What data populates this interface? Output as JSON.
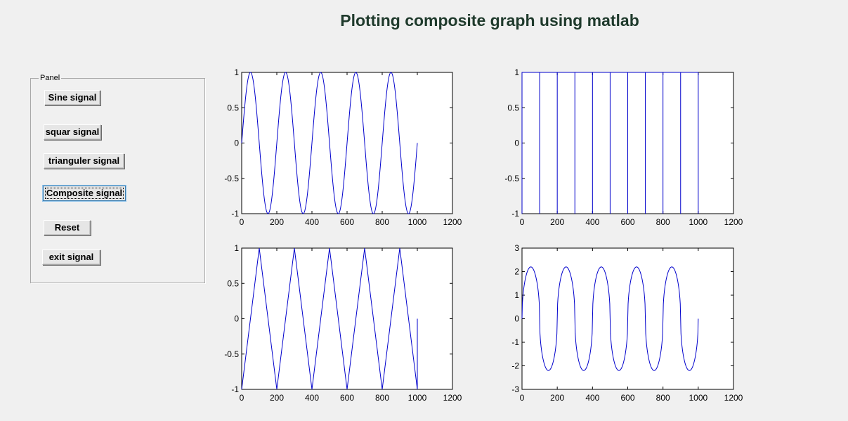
{
  "header": {
    "title": "Plotting composite graph using matlab"
  },
  "panel": {
    "label": "Panel",
    "buttons": [
      {
        "id": "sine",
        "label": "Sine signal"
      },
      {
        "id": "square",
        "label": "squar signal"
      },
      {
        "id": "triangle",
        "label": "trianguler signal"
      },
      {
        "id": "composite",
        "label": "Composite signal",
        "focused": true
      },
      {
        "id": "reset",
        "label": "Reset"
      },
      {
        "id": "exit",
        "label": "exit signal"
      }
    ]
  },
  "colors": {
    "line": "#0000cc",
    "background": "#f0f0f0",
    "title": "#1f3a2c"
  },
  "chart_data": [
    {
      "type": "line",
      "position": "top-left",
      "xlim": [
        0,
        1200
      ],
      "ylim": [
        -1,
        1
      ],
      "xticks": [
        "0",
        "200",
        "400",
        "600",
        "800",
        "1000",
        "1200"
      ],
      "yticks": [
        "-1",
        "-0.5",
        "0",
        "0.5",
        "1"
      ],
      "series": [
        {
          "kind": "sine",
          "period": 200,
          "amplitude": 1,
          "x_range": [
            0,
            1000
          ]
        }
      ]
    },
    {
      "type": "line",
      "position": "top-right",
      "xlim": [
        0,
        1200
      ],
      "ylim": [
        -1,
        1
      ],
      "xticks": [
        "0",
        "200",
        "400",
        "600",
        "800",
        "1000",
        "1200"
      ],
      "yticks": [
        "-1",
        "-0.5",
        "0",
        "0.5",
        "1"
      ],
      "series": [
        {
          "kind": "square",
          "period": 100,
          "amplitude": 1,
          "x_range": [
            0,
            1000
          ]
        }
      ]
    },
    {
      "type": "line",
      "position": "bottom-left",
      "xlim": [
        0,
        1200
      ],
      "ylim": [
        -1,
        1
      ],
      "xticks": [
        "0",
        "200",
        "400",
        "600",
        "800",
        "1000",
        "1200"
      ],
      "yticks": [
        "-1",
        "-0.5",
        "0",
        "0.5",
        "1"
      ],
      "series": [
        {
          "kind": "triangle",
          "period": 200,
          "amplitude": 1,
          "x_range": [
            0,
            1000
          ]
        }
      ]
    },
    {
      "type": "line",
      "position": "bottom-right",
      "xlim": [
        0,
        1200
      ],
      "ylim": [
        -3,
        3
      ],
      "xticks": [
        "0",
        "200",
        "400",
        "600",
        "800",
        "1000",
        "1200"
      ],
      "yticks": [
        "-3",
        "-2",
        "-1",
        "0",
        "1",
        "2",
        "3"
      ],
      "series": [
        {
          "kind": "composite",
          "period": 200,
          "amplitude": 2.2,
          "x_range": [
            0,
            1000
          ]
        }
      ]
    }
  ]
}
